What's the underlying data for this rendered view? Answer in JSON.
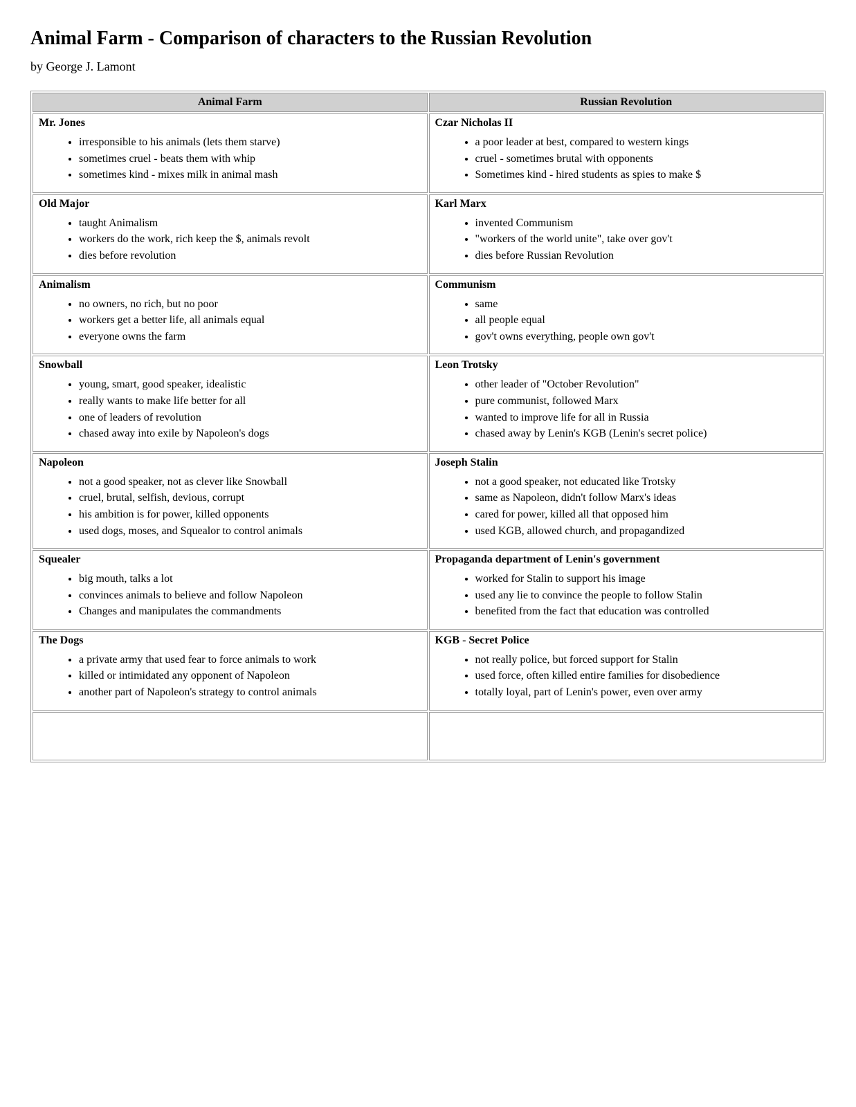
{
  "title": "Animal Farm - Comparison of characters to the Russian Revolution",
  "author": "by George J. Lamont",
  "columns": [
    "Animal Farm",
    "Russian Revolution"
  ],
  "rows": [
    {
      "left": {
        "title": "Mr. Jones",
        "points": [
          "irresponsible to his animals (lets them starve)",
          "sometimes cruel - beats them with whip",
          "sometimes kind - mixes milk in animal mash"
        ]
      },
      "right": {
        "title": "Czar Nicholas II",
        "points": [
          "a poor leader at best, compared to western kings",
          "cruel - sometimes brutal with opponents",
          "Sometimes kind - hired students as spies to make $"
        ]
      }
    },
    {
      "left": {
        "title": "Old Major",
        "points": [
          "taught Animalism",
          "workers do the work, rich keep the $, animals revolt",
          "dies before revolution"
        ]
      },
      "right": {
        "title": "Karl Marx",
        "points": [
          "invented Communism",
          "\"workers of the world unite\", take over gov't",
          "dies before Russian Revolution"
        ]
      }
    },
    {
      "left": {
        "title": "Animalism",
        "points": [
          "no owners, no rich, but no poor",
          "workers get a better life, all animals equal",
          "everyone owns the farm"
        ]
      },
      "right": {
        "title": "Communism",
        "points": [
          "same",
          "all people equal",
          "gov't owns everything, people own gov't"
        ]
      }
    },
    {
      "left": {
        "title": "Snowball",
        "points": [
          "young, smart, good speaker, idealistic",
          "really wants to make life better for all",
          "one of leaders of revolution",
          "chased away into exile by Napoleon's dogs"
        ]
      },
      "right": {
        "title": "Leon Trotsky",
        "points": [
          "other leader of \"October Revolution\"",
          "pure communist, followed Marx",
          "wanted to improve life for all in Russia",
          "chased away by Lenin's KGB (Lenin's secret police)"
        ]
      }
    },
    {
      "left": {
        "title": "Napoleon",
        "points": [
          "not a good speaker, not as clever like Snowball",
          "cruel, brutal, selfish, devious, corrupt",
          "his ambition is for power, killed opponents",
          "used dogs, moses, and Squealor to control animals"
        ]
      },
      "right": {
        "title": "Joseph Stalin",
        "points": [
          "not a good speaker, not educated like Trotsky",
          "same as Napoleon, didn't follow Marx's ideas",
          "cared for power, killed all that opposed him",
          "used KGB, allowed church, and propagandized"
        ]
      }
    },
    {
      "left": {
        "title": "Squealer",
        "points": [
          "big mouth, talks a lot",
          "convinces animals to believe and follow Napoleon",
          "Changes and manipulates the commandments"
        ]
      },
      "right": {
        "title": "Propaganda department of Lenin's government",
        "points": [
          "worked for Stalin to support his image",
          "used any lie to convince the people to follow Stalin",
          "benefited from the fact that education was controlled"
        ]
      }
    },
    {
      "left": {
        "title": "The Dogs",
        "points": [
          "a private army that used fear to force animals to work",
          "killed or intimidated any opponent of Napoleon",
          "another part of Napoleon's strategy to control animals"
        ]
      },
      "right": {
        "title": "KGB - Secret Police",
        "points": [
          "not really police, but forced support for Stalin",
          "used force, often killed entire families for disobedience",
          "totally loyal, part of Lenin's power, even over army"
        ]
      }
    },
    {
      "left": {
        "title": "",
        "points": []
      },
      "right": {
        "title": "",
        "points": []
      }
    }
  ]
}
